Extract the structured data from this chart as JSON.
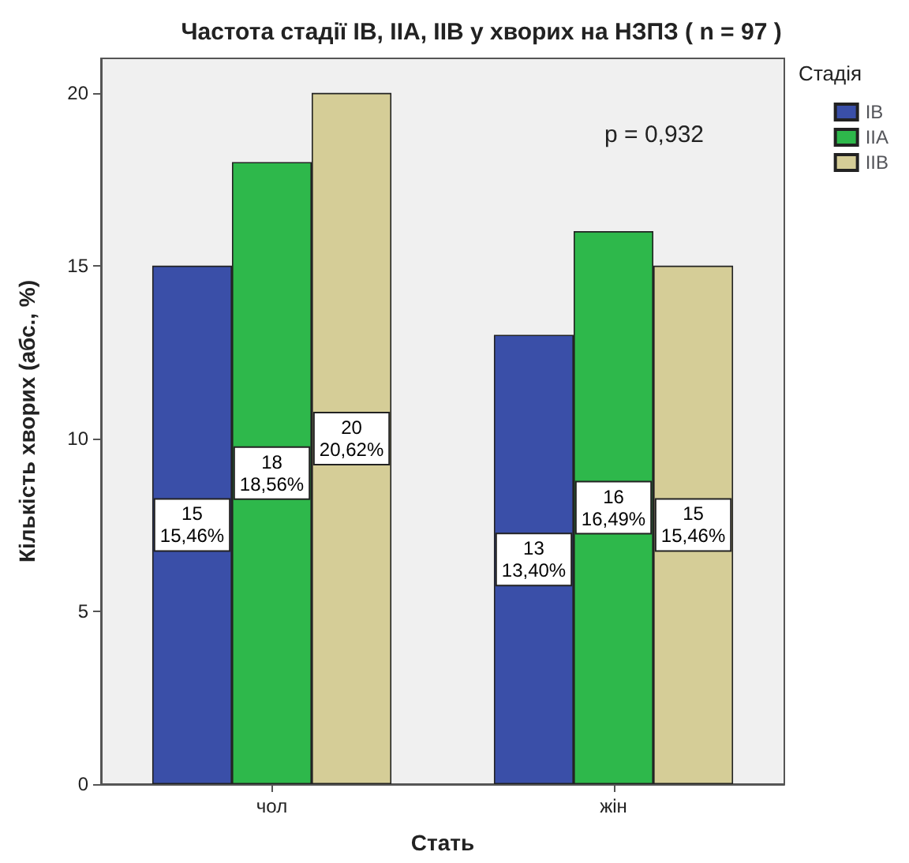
{
  "chart_data": {
    "type": "bar",
    "title": "Частота стадії IB, IIA, IIB у хворих на НЗПЗ ( n = 97 )",
    "xlabel": "Стать",
    "ylabel": "Кількість хворих (абс., %)",
    "legend_title": "Стадія",
    "categories": [
      "чол",
      "жін"
    ],
    "series": [
      {
        "name": "IB",
        "color": "#3a4fa8",
        "values": [
          15,
          13
        ],
        "value_labels": [
          "15\n15,46%",
          "13\n13,40%"
        ]
      },
      {
        "name": "IIA",
        "color": "#2eb84b",
        "values": [
          18,
          16
        ],
        "value_labels": [
          "18\n18,56%",
          "16\n16,49%"
        ]
      },
      {
        "name": "IIB",
        "color": "#d5cd97",
        "values": [
          20,
          15
        ],
        "value_labels": [
          "20\n20,62%",
          "15\n15,46%"
        ]
      }
    ],
    "ylim": [
      0,
      21
    ],
    "yticks": [
      0,
      5,
      10,
      15,
      20
    ],
    "grid": false,
    "legend": "right",
    "annotations": [
      "p = 0,932"
    ]
  }
}
